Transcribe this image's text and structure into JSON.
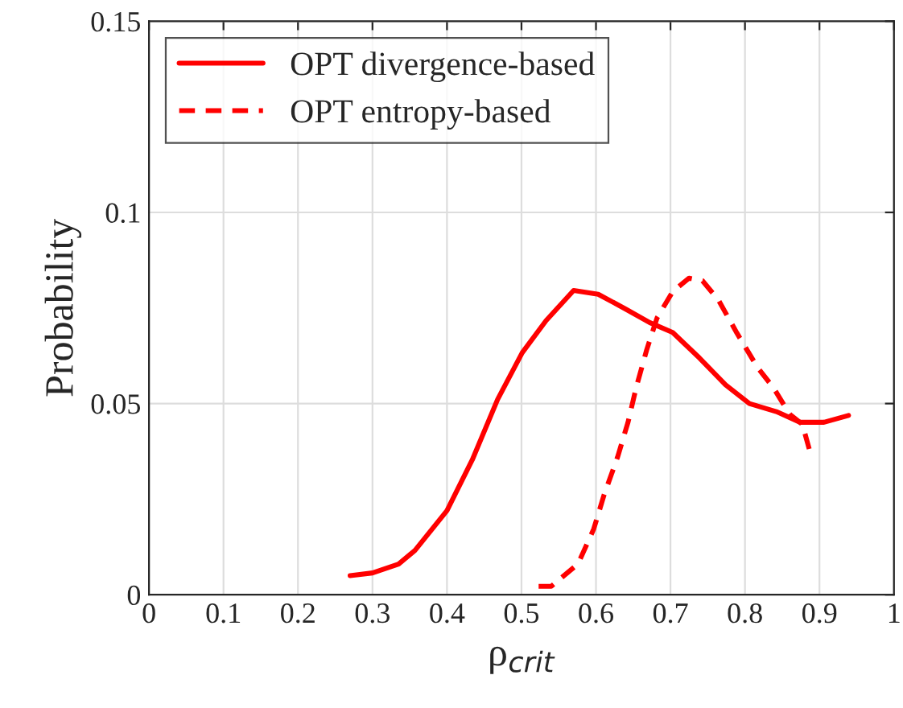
{
  "chart_data": {
    "type": "line",
    "xlabel": "ρ$_{crit}$",
    "ylabel": "Probability",
    "xlim": [
      0,
      1
    ],
    "xticks": [
      0,
      0.1,
      0.2,
      0.3,
      0.4,
      0.5,
      0.6,
      0.7,
      0.8,
      0.9,
      1
    ],
    "ylim": [
      0,
      0.15
    ],
    "yticks": [
      0,
      0.05,
      0.1,
      0.15
    ],
    "grid": true,
    "legend": "top left",
    "series": [
      {
        "name": "OPT divergence-based",
        "color": "#ff0000",
        "line_style": "solid",
        "x": [
          0.27,
          0.3,
          0.335,
          0.357,
          0.4,
          0.434,
          0.468,
          0.501,
          0.533,
          0.57,
          0.603,
          0.64,
          0.672,
          0.703,
          0.739,
          0.774,
          0.806,
          0.842,
          0.874,
          0.906,
          0.939
        ],
        "values": [
          0.005,
          0.0057,
          0.008,
          0.0116,
          0.022,
          0.0353,
          0.0511,
          0.0633,
          0.0717,
          0.0796,
          0.0786,
          0.0747,
          0.0712,
          0.0686,
          0.0619,
          0.0549,
          0.05,
          0.0479,
          0.0451,
          0.0451,
          0.0469
        ]
      },
      {
        "name": "OPT entropy-based",
        "color": "#ff0000",
        "line_style": "dashed",
        "x": [
          0.523,
          0.54,
          0.576,
          0.597,
          0.611,
          0.629,
          0.643,
          0.654,
          0.668,
          0.682,
          0.703,
          0.725,
          0.743,
          0.764,
          0.789,
          0.817,
          0.838,
          0.86,
          0.877,
          0.888
        ],
        "values": [
          0.0022,
          0.0022,
          0.0081,
          0.0172,
          0.0262,
          0.036,
          0.0451,
          0.0542,
          0.064,
          0.0724,
          0.0793,
          0.0828,
          0.0821,
          0.0772,
          0.0685,
          0.0594,
          0.0542,
          0.0472,
          0.0446,
          0.0369
        ]
      }
    ]
  }
}
